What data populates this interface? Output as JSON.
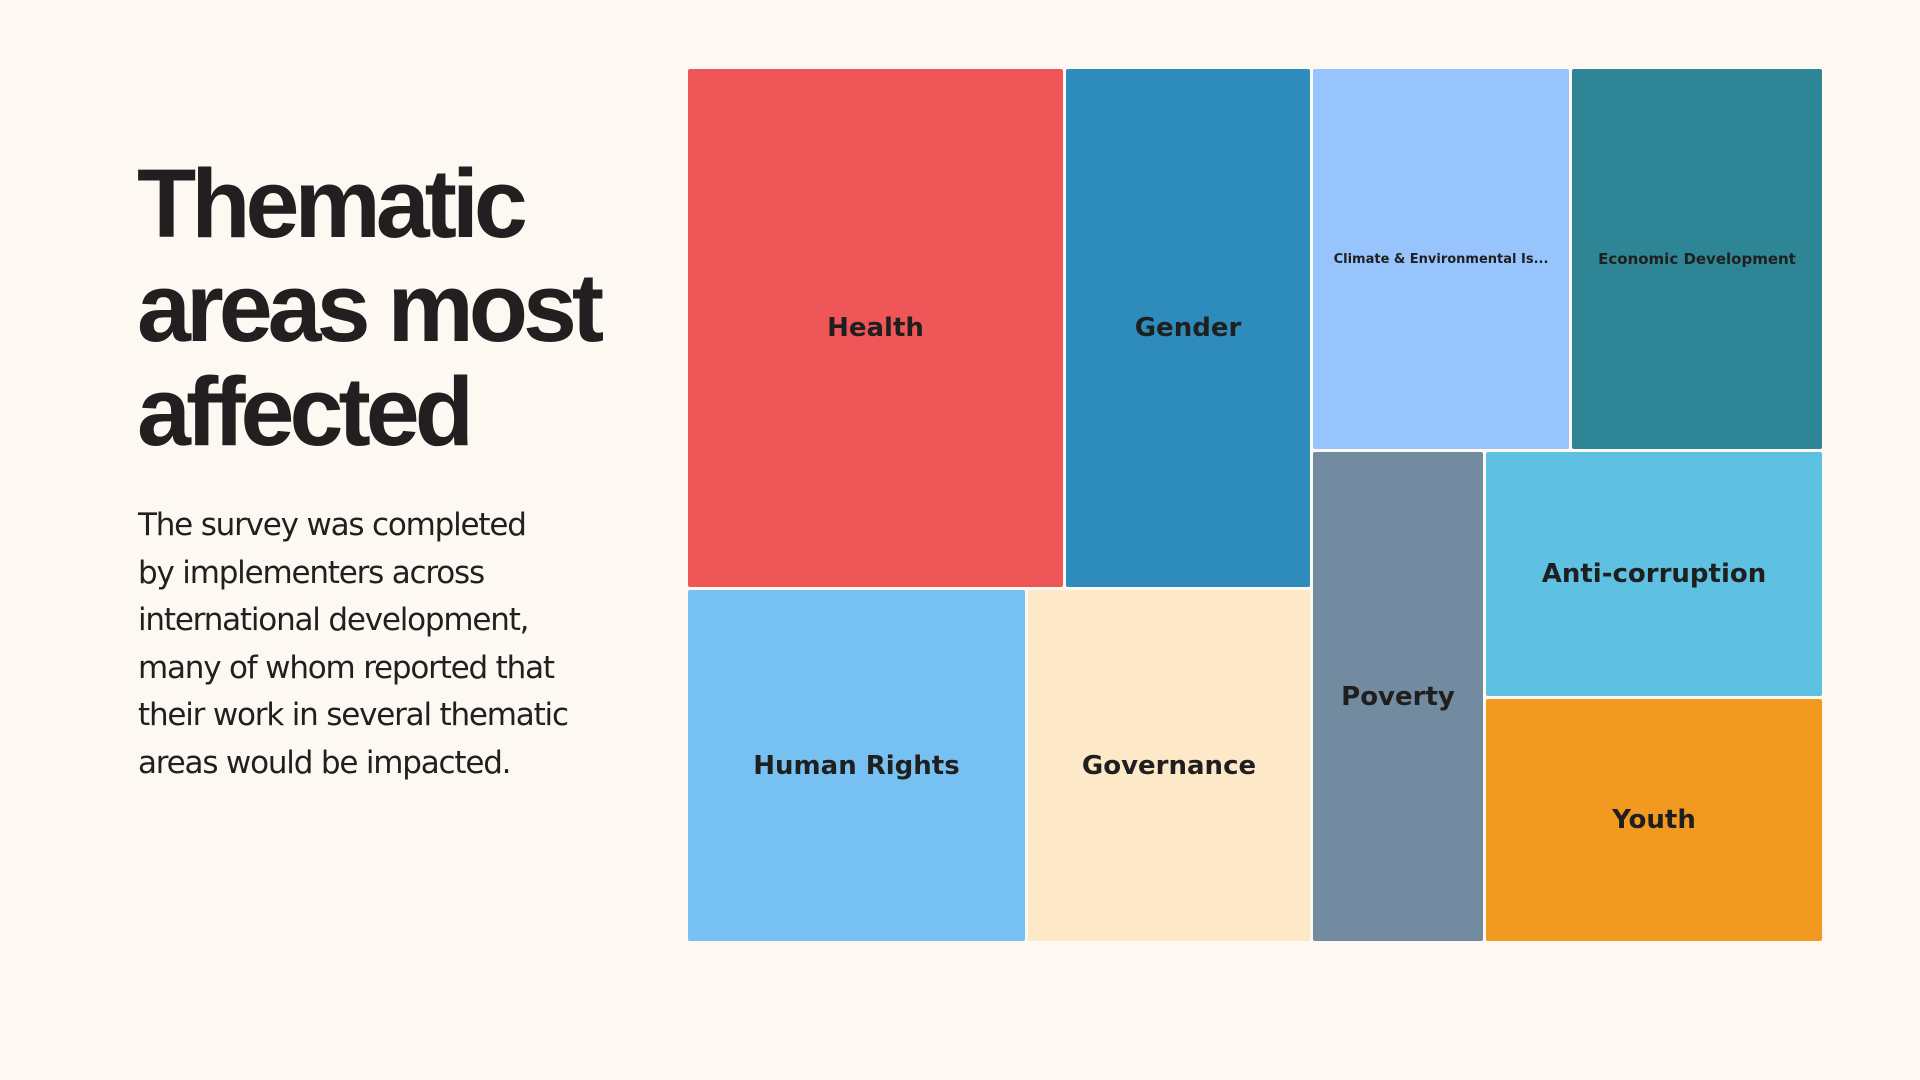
{
  "slide": {
    "title_lines": [
      "Thematic",
      "areas most",
      "affected"
    ],
    "body_lines": [
      "The survey was completed",
      "by implementers across",
      "international development,",
      "many of whom reported that",
      "their work in several thematic",
      "areas would be impacted."
    ],
    "background": "#fdf9f2"
  },
  "chart_data": {
    "type": "treemap",
    "title": "Thematic areas most affected",
    "items": [
      {
        "name": "Health",
        "label": "Health",
        "color": "#ef5657"
      },
      {
        "name": "Gender",
        "label": "Gender",
        "color": "#2e8cbc"
      },
      {
        "name": "Climate & Environmental Issues",
        "label": "Climate & Environmental Is...",
        "color": "#97c4fd"
      },
      {
        "name": "Economic Development",
        "label": "Economic Development",
        "color": "#2e8595"
      },
      {
        "name": "Human Rights",
        "label": "Human Rights",
        "color": "#76c1f2"
      },
      {
        "name": "Governance",
        "label": "Governance",
        "color": "#fde8c8"
      },
      {
        "name": "Poverty",
        "label": "Poverty",
        "color": "#728ba0"
      },
      {
        "name": "Anti-corruption",
        "label": "Anti-corruption",
        "color": "#5ec1e2"
      },
      {
        "name": "Youth",
        "label": "Youth",
        "color": "#f19a1f"
      }
    ]
  }
}
